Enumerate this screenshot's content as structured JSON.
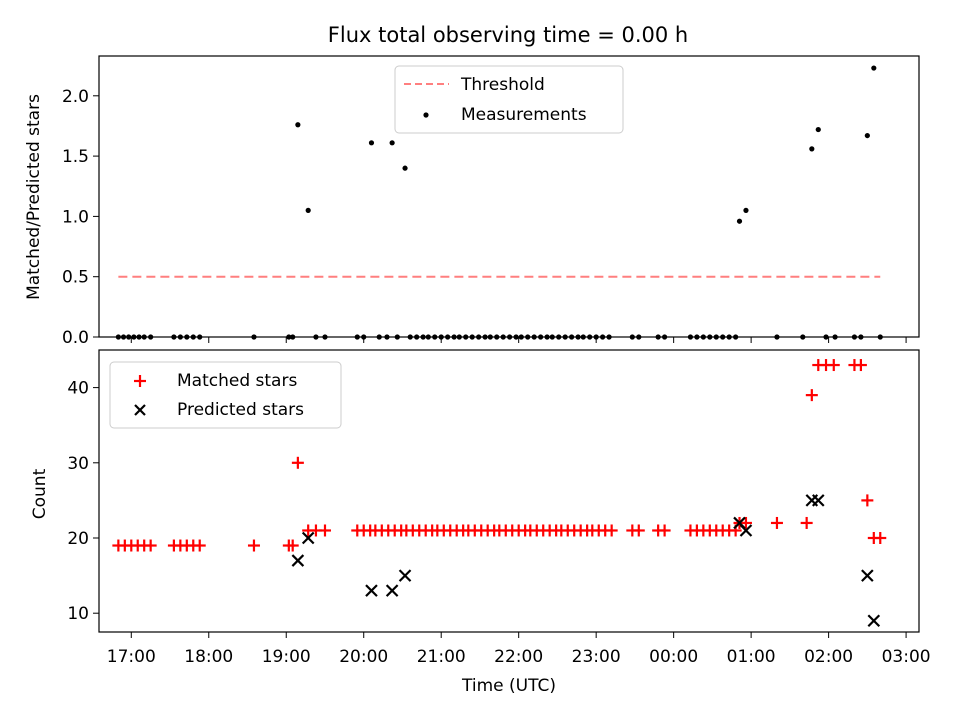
{
  "chart_data": [
    {
      "type": "scatter",
      "title": "Flux total observing time = 0.00 h",
      "xlabel": "",
      "ylabel": "Matched/Predicted stars",
      "xlim": [
        "16:35",
        "03:10"
      ],
      "ylim": [
        0,
        2.33
      ],
      "yticks": [
        "0.0",
        "0.5",
        "1.0",
        "1.5",
        "2.0"
      ],
      "ytick_values": [
        0,
        0.5,
        1.0,
        1.5,
        2.0
      ],
      "xticks_shown": false,
      "grid": false,
      "legend_position": "top-center",
      "threshold": {
        "name": "Threshold",
        "y": 0.5,
        "x_start": "16:50",
        "x_end": "02:40",
        "color": "#ff7f7f"
      },
      "series": [
        {
          "name": "Measurements",
          "color": "#000000",
          "marker": "dot",
          "points": [
            [
              "16:50",
              0
            ],
            [
              "16:54",
              0
            ],
            [
              "16:58",
              0
            ],
            [
              "17:02",
              0
            ],
            [
              "17:06",
              0
            ],
            [
              "17:10",
              0
            ],
            [
              "17:15",
              0
            ],
            [
              "17:33",
              0
            ],
            [
              "17:38",
              0
            ],
            [
              "17:43",
              0
            ],
            [
              "17:48",
              0
            ],
            [
              "17:53",
              0
            ],
            [
              "18:35",
              0
            ],
            [
              "19:02",
              0
            ],
            [
              "19:05",
              0
            ],
            [
              "19:09",
              1.76
            ],
            [
              "19:17",
              1.05
            ],
            [
              "19:23",
              0
            ],
            [
              "19:30",
              0
            ],
            [
              "19:55",
              0
            ],
            [
              "20:00",
              0
            ],
            [
              "20:06",
              1.61
            ],
            [
              "20:12",
              0
            ],
            [
              "20:18",
              0
            ],
            [
              "20:22",
              1.61
            ],
            [
              "20:26",
              0
            ],
            [
              "20:32",
              1.4
            ]
          ],
          "zero_run": {
            "from": "20:36",
            "to": "23:12",
            "step_min": 4.8,
            "y": 0
          },
          "points_tail": [
            [
              "23:28",
              0
            ],
            [
              "23:33",
              0
            ],
            [
              "23:48",
              0
            ],
            [
              "23:53",
              0
            ],
            [
              "00:13",
              0
            ],
            [
              "00:18",
              0
            ],
            [
              "00:23",
              0
            ],
            [
              "00:28",
              0
            ],
            [
              "00:33",
              0
            ],
            [
              "00:38",
              0
            ],
            [
              "00:43",
              0
            ],
            [
              "00:48",
              0
            ],
            [
              "00:51",
              0.96
            ],
            [
              "00:56",
              1.05
            ],
            [
              "01:20",
              0
            ],
            [
              "01:40",
              0
            ],
            [
              "01:47",
              1.56
            ],
            [
              "01:52",
              1.72
            ],
            [
              "01:58",
              0
            ],
            [
              "02:05",
              0
            ],
            [
              "02:20",
              0
            ],
            [
              "02:25",
              0
            ],
            [
              "02:30",
              1.67
            ],
            [
              "02:35",
              2.23
            ],
            [
              "02:40",
              0
            ]
          ]
        }
      ]
    },
    {
      "type": "scatter",
      "title": "",
      "xlabel": "Time (UTC)",
      "ylabel": "Count",
      "xlim": [
        "16:35",
        "03:10"
      ],
      "ylim": [
        7.5,
        45
      ],
      "yticks": [
        "10",
        "20",
        "30",
        "40"
      ],
      "ytick_values": [
        10,
        20,
        30,
        40
      ],
      "xticks": [
        "17:00",
        "18:00",
        "19:00",
        "20:00",
        "21:00",
        "22:00",
        "23:00",
        "00:00",
        "01:00",
        "02:00",
        "03:00"
      ],
      "grid": false,
      "legend_position": "top-left",
      "series": [
        {
          "name": "Matched stars",
          "color": "#ff0000",
          "marker": "plus",
          "points": [
            [
              "16:50",
              19
            ],
            [
              "16:55",
              19
            ],
            [
              "17:00",
              19
            ],
            [
              "17:05",
              19
            ],
            [
              "17:10",
              19
            ],
            [
              "17:15",
              19
            ],
            [
              "17:33",
              19
            ],
            [
              "17:38",
              19
            ],
            [
              "17:43",
              19
            ],
            [
              "17:48",
              19
            ],
            [
              "17:53",
              19
            ],
            [
              "18:35",
              19
            ],
            [
              "19:02",
              19
            ],
            [
              "19:05",
              19
            ],
            [
              "19:09",
              30
            ],
            [
              "19:17",
              21
            ],
            [
              "19:23",
              21
            ],
            [
              "19:30",
              21
            ]
          ],
          "run": {
            "from": "19:55",
            "to": "23:12",
            "step_min": 4.8,
            "y": 21
          },
          "points_tail": [
            [
              "23:28",
              21
            ],
            [
              "23:33",
              21
            ],
            [
              "23:48",
              21
            ],
            [
              "23:53",
              21
            ],
            [
              "00:13",
              21
            ],
            [
              "00:18",
              21
            ],
            [
              "00:23",
              21
            ],
            [
              "00:28",
              21
            ],
            [
              "00:33",
              21
            ],
            [
              "00:38",
              21
            ],
            [
              "00:43",
              21
            ],
            [
              "00:48",
              21
            ],
            [
              "00:51",
              22
            ],
            [
              "00:56",
              22
            ],
            [
              "01:20",
              22
            ],
            [
              "01:43",
              22
            ],
            [
              "01:47",
              39
            ],
            [
              "01:52",
              43
            ],
            [
              "01:58",
              43
            ],
            [
              "02:04",
              43
            ],
            [
              "02:20",
              43
            ],
            [
              "02:25",
              43
            ],
            [
              "02:30",
              25
            ],
            [
              "02:35",
              20
            ],
            [
              "02:40",
              20
            ]
          ]
        },
        {
          "name": "Predicted stars",
          "color": "#000000",
          "marker": "x",
          "points": [
            [
              "19:09",
              17
            ],
            [
              "19:17",
              20
            ],
            [
              "20:06",
              13
            ],
            [
              "20:22",
              13
            ],
            [
              "20:32",
              15
            ],
            [
              "00:51",
              22
            ],
            [
              "00:56",
              21
            ],
            [
              "01:47",
              25
            ],
            [
              "01:52",
              25
            ],
            [
              "02:30",
              15
            ],
            [
              "02:35",
              9
            ]
          ]
        }
      ]
    }
  ]
}
